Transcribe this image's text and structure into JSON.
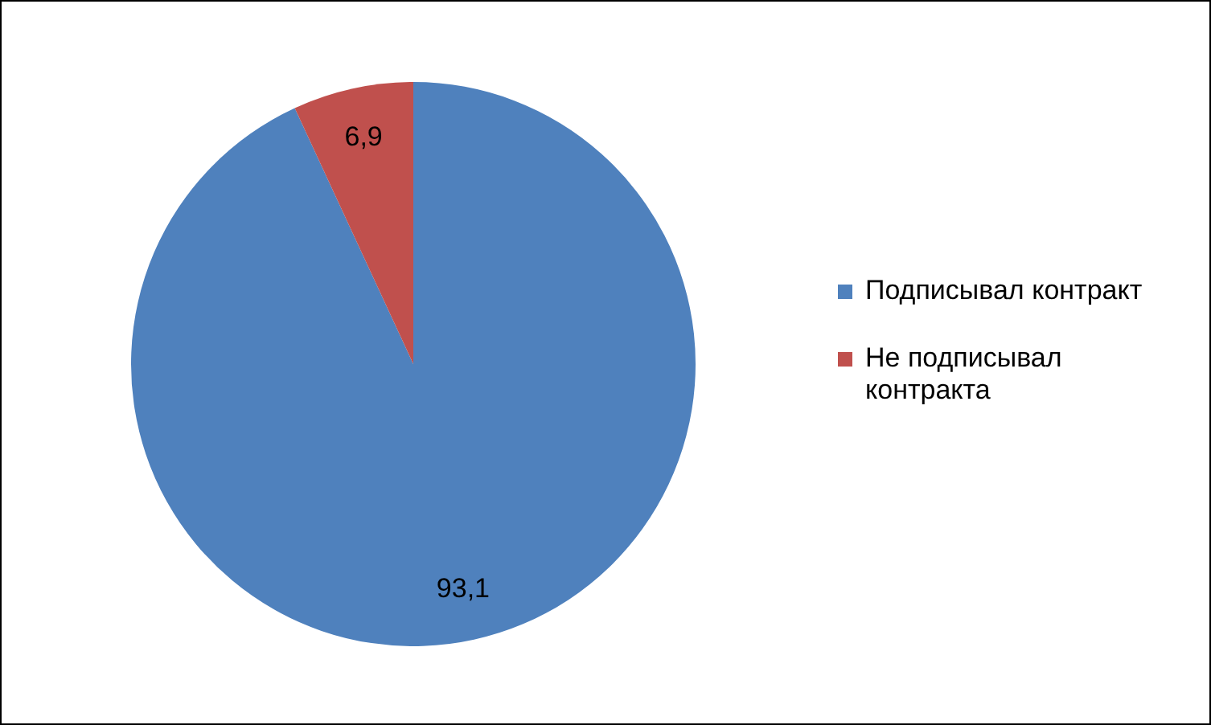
{
  "chart_data": {
    "type": "pie",
    "categories": [
      "Подписывал контракт",
      "Не подписывал контракта"
    ],
    "values": [
      93.1,
      6.9
    ],
    "colors": [
      "#4f81bd",
      "#c0504d"
    ],
    "value_labels": [
      "93,1",
      "6,9"
    ],
    "legend": "right"
  }
}
